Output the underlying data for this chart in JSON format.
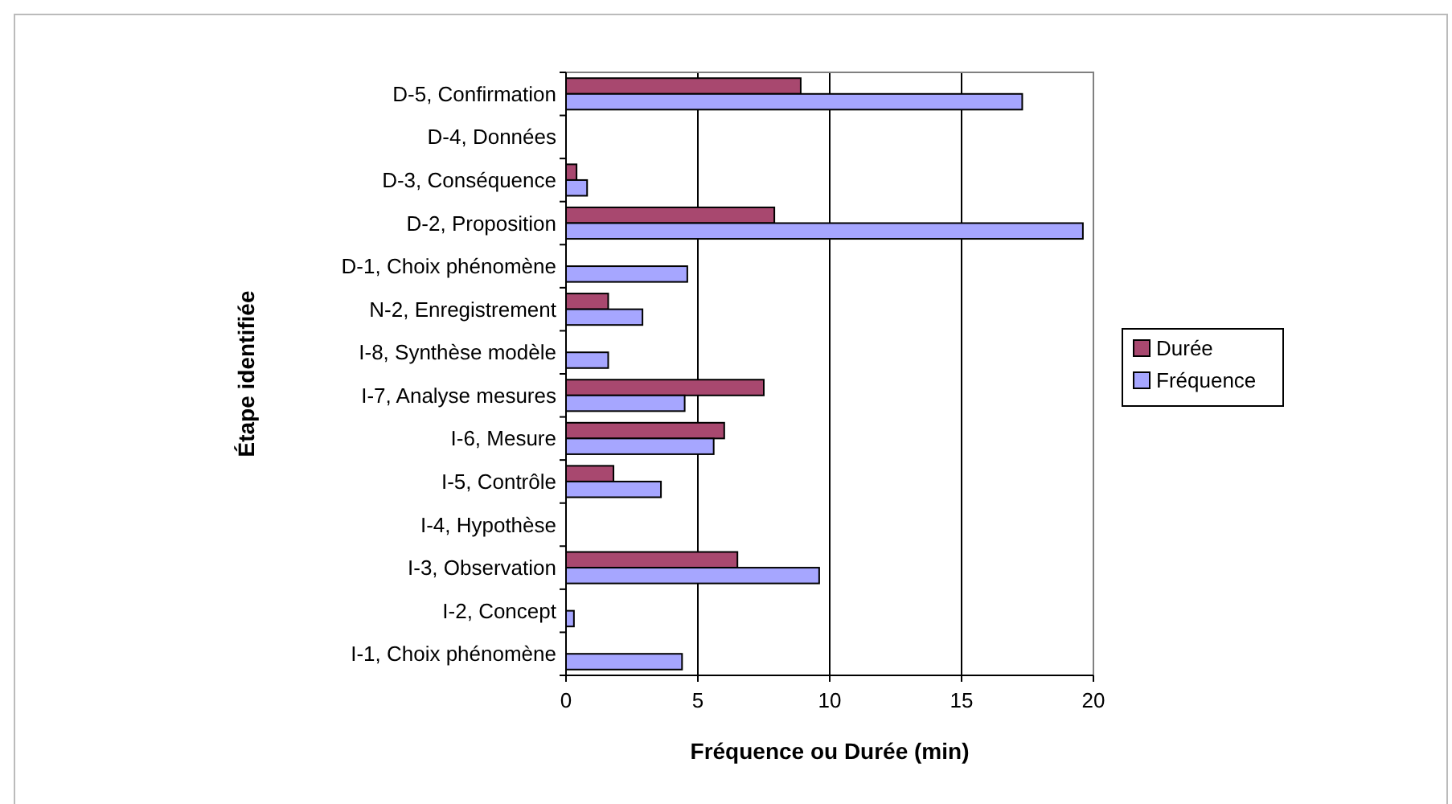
{
  "chart_data": {
    "type": "bar",
    "orientation": "horizontal",
    "xlabel": "Fréquence ou Durée (min)",
    "ylabel": "Étape identifiée",
    "categories": [
      "D-5, Confirmation",
      "D-4, Données",
      "D-3, Conséquence",
      "D-2, Proposition",
      "D-1, Choix phénomène",
      "N-2, Enregistrement",
      "I-8, Synthèse modèle",
      "I-7, Analyse mesures",
      "I-6, Mesure",
      "I-5, Contrôle",
      "I-4, Hypothèse",
      "I-3, Observation",
      "I-2, Concept",
      "I-1, Choix phénomène"
    ],
    "series": [
      {
        "name": "Durée",
        "color": "#a8486f",
        "values": [
          8.9,
          null,
          0.4,
          7.9,
          null,
          1.6,
          null,
          7.5,
          6.0,
          1.8,
          null,
          6.5,
          null,
          null
        ]
      },
      {
        "name": "Fréquence",
        "color": "#a6a6ff",
        "values": [
          17.3,
          null,
          0.8,
          19.6,
          4.6,
          2.9,
          1.6,
          4.5,
          5.6,
          3.6,
          null,
          9.6,
          0.3,
          4.4
        ]
      }
    ],
    "xlim": [
      0,
      20
    ],
    "xticks": [
      0,
      5,
      10,
      15,
      20
    ],
    "grid": "x",
    "legend": "right"
  }
}
